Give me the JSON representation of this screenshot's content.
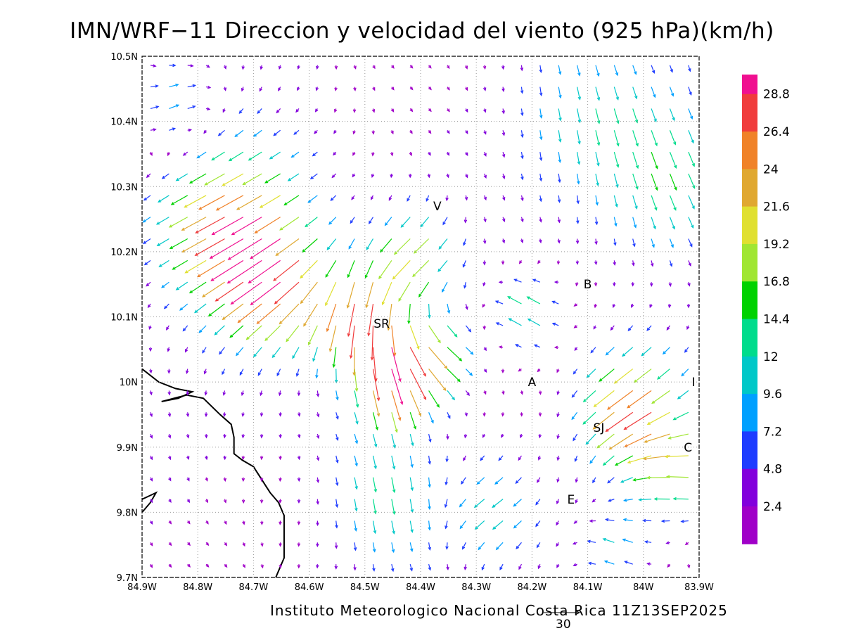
{
  "title": "IMN/WRF−11 Direccion y velocidad del viento (925 hPa)(km/h)",
  "credit": "Instituto Meteorologico Nacional Costa Rica 11Z13SEP2025",
  "reference_vector": {
    "label": "30",
    "speed_kmh": 30
  },
  "x_ticks": [
    "84.9W",
    "84.8W",
    "84.7W",
    "84.6W",
    "84.5W",
    "84.4W",
    "84.3W",
    "84.2W",
    "84.1W",
    "84W",
    "83.9W"
  ],
  "y_ticks": [
    "10.5N",
    "10.4N",
    "10.3N",
    "10.2N",
    "10.1N",
    "10N",
    "9.9N",
    "9.8N",
    "9.7N"
  ],
  "extent": {
    "lon_west": -84.9,
    "lon_east": -83.9,
    "lat_south": 9.7,
    "lat_north": 10.5
  },
  "grid": "dotted",
  "places": [
    {
      "label": "V",
      "lon": -84.37,
      "lat": 10.27
    },
    {
      "label": "B",
      "lon": -84.1,
      "lat": 10.15
    },
    {
      "label": "SR",
      "lon": -84.47,
      "lat": 10.09
    },
    {
      "label": "A",
      "lon": -84.2,
      "lat": 10.0
    },
    {
      "label": "I",
      "lon": -83.91,
      "lat": 10.0
    },
    {
      "label": "SJ",
      "lon": -84.08,
      "lat": 9.93
    },
    {
      "label": "C",
      "lon": -83.92,
      "lat": 9.9
    },
    {
      "label": "E",
      "lon": -84.13,
      "lat": 9.82
    }
  ],
  "colorbar": {
    "labels": [
      "28.8",
      "26.4",
      "24",
      "21.6",
      "19.2",
      "16.8",
      "14.4",
      "12",
      "9.6",
      "7.2",
      "4.8",
      "2.4"
    ],
    "colors": [
      "#f01090",
      "#f03c3c",
      "#f08228",
      "#e0a830",
      "#e0e030",
      "#a0e632",
      "#00d200",
      "#00dc8c",
      "#00c8c8",
      "#00a0ff",
      "#1e3cff",
      "#8200dc",
      "#a000c8"
    ]
  },
  "coastline": [
    [
      [
        -84.9,
        10.02
      ],
      [
        -84.87,
        10.0
      ],
      [
        -84.84,
        9.99
      ],
      [
        -84.81,
        9.985
      ],
      [
        -84.835,
        9.975
      ],
      [
        -84.865,
        9.97
      ],
      [
        -84.82,
        9.98
      ],
      [
        -84.79,
        9.975
      ],
      [
        -84.76,
        9.95
      ],
      [
        -84.74,
        9.935
      ],
      [
        -84.735,
        9.915
      ],
      [
        -84.735,
        9.89
      ],
      [
        -84.72,
        9.88
      ],
      [
        -84.7,
        9.87
      ],
      [
        -84.685,
        9.85
      ],
      [
        -84.67,
        9.83
      ],
      [
        -84.655,
        9.815
      ],
      [
        -84.645,
        9.795
      ],
      [
        -84.645,
        9.76
      ],
      [
        -84.645,
        9.73
      ],
      [
        -84.655,
        9.71
      ],
      [
        -84.66,
        9.7
      ]
    ],
    [
      [
        -84.9,
        9.8
      ],
      [
        -84.885,
        9.815
      ],
      [
        -84.875,
        9.83
      ],
      [
        -84.9,
        9.82
      ]
    ]
  ],
  "wind_field": {
    "units": "km/h",
    "lon_start": -84.9,
    "lat_start": 9.7,
    "spacing_deg": 0.0333,
    "nx": 30,
    "ny": 25,
    "jets": [
      {
        "lon": -84.75,
        "lat": 10.27,
        "u": -23,
        "v": -10,
        "radius": 0.13
      },
      {
        "lon": -84.67,
        "lat": 10.17,
        "u": -18,
        "v": -12,
        "radius": 0.1
      },
      {
        "lon": -84.52,
        "lat": 10.12,
        "u": -3,
        "v": -22,
        "radius": 0.08
      },
      {
        "lon": -84.47,
        "lat": 10.02,
        "u": 4,
        "v": -20,
        "radius": 0.07
      },
      {
        "lon": -84.4,
        "lat": 10.06,
        "u": 15,
        "v": -9,
        "radius": 0.07
      },
      {
        "lon": -84.42,
        "lat": 10.21,
        "u": -15,
        "v": -10,
        "radius": 0.07
      },
      {
        "lon": -84.03,
        "lat": 9.98,
        "u": -22,
        "v": -14,
        "radius": 0.09
      },
      {
        "lon": -84.22,
        "lat": 10.12,
        "u": -14,
        "v": 9,
        "radius": 0.06
      },
      {
        "lon": -83.95,
        "lat": 9.88,
        "u": -18,
        "v": 5,
        "radius": 0.08
      },
      {
        "lon": -84.06,
        "lat": 9.76,
        "u": -10,
        "v": 6,
        "radius": 0.07
      },
      {
        "lon": -84.48,
        "lat": 9.85,
        "u": 1,
        "v": -11,
        "radius": 0.1
      },
      {
        "lon": -84.28,
        "lat": 9.82,
        "u": -9,
        "v": -4,
        "radius": 0.08
      },
      {
        "lon": -83.97,
        "lat": 10.33,
        "u": 4,
        "v": -10,
        "radius": 0.12
      },
      {
        "lon": -84.12,
        "lat": 10.44,
        "u": 2,
        "v": -8,
        "radius": 0.12
      },
      {
        "lon": -84.86,
        "lat": 10.43,
        "u": 9,
        "v": 7,
        "radius": 0.08
      }
    ]
  }
}
